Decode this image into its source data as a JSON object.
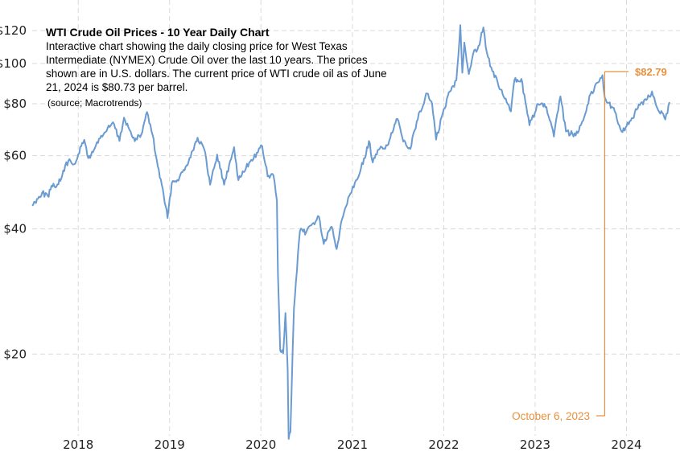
{
  "chart_data": {
    "type": "line",
    "title": "WTI Crude Oil Prices - 10 Year Daily Chart",
    "description": [
      "Interactive chart showing the daily closing price for West Texas",
      "Intermediate (NYMEX) Crude Oil over the last 10 years. The prices",
      "shown are in U.S. dollars. The current price of WTI crude oil as of June",
      "21, 2024 is $80.73 per barrel."
    ],
    "source": "(source; Macrotrends)",
    "y_scale": "log",
    "ylim": [
      13,
      130
    ],
    "y_ticks": [
      {
        "value": 20,
        "label": "$20"
      },
      {
        "value": 40,
        "label": "$40"
      },
      {
        "value": 60,
        "label": "$60"
      },
      {
        "value": 80,
        "label": "$80"
      },
      {
        "value": 100,
        "label": "$100"
      },
      {
        "value": 120,
        "label": "$120"
      }
    ],
    "xlim": [
      "2017-07-01",
      "2024-06-21"
    ],
    "x_ticks": [
      {
        "date": "2018-01-01",
        "label": "2018"
      },
      {
        "date": "2019-01-01",
        "label": "2019"
      },
      {
        "date": "2020-01-01",
        "label": "2020"
      },
      {
        "date": "2021-01-01",
        "label": "2021"
      },
      {
        "date": "2022-01-01",
        "label": "2022"
      },
      {
        "date": "2023-01-01",
        "label": "2023"
      },
      {
        "date": "2024-01-01",
        "label": "2024"
      }
    ],
    "grid": true,
    "line_color": "#6a9bd1",
    "callout_color": "#e8903c",
    "series": [
      {
        "points": [
          [
            "2017-07-01",
            45.5
          ],
          [
            "2017-07-20",
            47.2
          ],
          [
            "2017-08-10",
            48.9
          ],
          [
            "2017-09-01",
            48.0
          ],
          [
            "2017-09-20",
            50.6
          ],
          [
            "2017-10-10",
            51.2
          ],
          [
            "2017-10-25",
            52.8
          ],
          [
            "2017-11-10",
            56.8
          ],
          [
            "2017-12-01",
            58.3
          ],
          [
            "2017-12-15",
            57.2
          ],
          [
            "2018-01-01",
            60.4
          ],
          [
            "2018-01-25",
            65.5
          ],
          [
            "2018-02-10",
            59.2
          ],
          [
            "2018-03-01",
            61.2
          ],
          [
            "2018-03-25",
            65.9
          ],
          [
            "2018-04-20",
            68.4
          ],
          [
            "2018-05-20",
            72.2
          ],
          [
            "2018-06-15",
            65.1
          ],
          [
            "2018-07-03",
            74.1
          ],
          [
            "2018-07-25",
            69.2
          ],
          [
            "2018-08-15",
            65.0
          ],
          [
            "2018-09-10",
            67.5
          ],
          [
            "2018-10-03",
            76.4
          ],
          [
            "2018-10-25",
            67.3
          ],
          [
            "2018-11-15",
            56.5
          ],
          [
            "2018-12-01",
            51.0
          ],
          [
            "2018-12-24",
            42.5
          ],
          [
            "2019-01-10",
            51.6
          ],
          [
            "2019-02-10",
            53.3
          ],
          [
            "2019-03-10",
            56.9
          ],
          [
            "2019-04-23",
            66.3
          ],
          [
            "2019-05-20",
            62.1
          ],
          [
            "2019-06-12",
            51.1
          ],
          [
            "2019-07-10",
            60.4
          ],
          [
            "2019-08-07",
            51.1
          ],
          [
            "2019-09-16",
            62.9
          ],
          [
            "2019-10-03",
            52.4
          ],
          [
            "2019-11-15",
            57.7
          ],
          [
            "2019-12-20",
            61.1
          ],
          [
            "2020-01-06",
            63.3
          ],
          [
            "2020-01-28",
            53.5
          ],
          [
            "2020-02-20",
            53.8
          ],
          [
            "2020-03-05",
            46.8
          ],
          [
            "2020-03-09",
            31.1
          ],
          [
            "2020-03-18",
            20.4
          ],
          [
            "2020-03-30",
            20.1
          ],
          [
            "2020-04-08",
            25.1
          ],
          [
            "2020-04-17",
            18.3
          ],
          [
            "2020-04-21",
            12.5
          ],
          [
            "2020-04-28",
            13.0
          ],
          [
            "2020-05-12",
            25.8
          ],
          [
            "2020-06-05",
            39.5
          ],
          [
            "2020-06-30",
            39.3
          ],
          [
            "2020-07-20",
            40.8
          ],
          [
            "2020-08-20",
            42.8
          ],
          [
            "2020-09-08",
            36.8
          ],
          [
            "2020-10-10",
            40.5
          ],
          [
            "2020-10-30",
            35.8
          ],
          [
            "2020-11-20",
            42.2
          ],
          [
            "2020-12-15",
            47.6
          ],
          [
            "2021-01-15",
            52.4
          ],
          [
            "2021-02-20",
            59.2
          ],
          [
            "2021-03-08",
            65.1
          ],
          [
            "2021-03-23",
            57.8
          ],
          [
            "2021-04-20",
            62.4
          ],
          [
            "2021-05-20",
            63.5
          ],
          [
            "2021-06-30",
            73.5
          ],
          [
            "2021-07-19",
            66.4
          ],
          [
            "2021-08-20",
            62.3
          ],
          [
            "2021-09-15",
            72.6
          ],
          [
            "2021-10-26",
            84.7
          ],
          [
            "2021-11-15",
            80.2
          ],
          [
            "2021-12-01",
            65.6
          ],
          [
            "2021-12-28",
            76.0
          ],
          [
            "2022-01-25",
            85.6
          ],
          [
            "2022-02-20",
            91.1
          ],
          [
            "2022-03-08",
            123.7
          ],
          [
            "2022-03-16",
            95.0
          ],
          [
            "2022-03-24",
            112.3
          ],
          [
            "2022-04-11",
            94.3
          ],
          [
            "2022-04-28",
            105.4
          ],
          [
            "2022-05-20",
            110.3
          ],
          [
            "2022-06-08",
            122.1
          ],
          [
            "2022-06-22",
            106.2
          ],
          [
            "2022-07-14",
            95.8
          ],
          [
            "2022-08-16",
            86.5
          ],
          [
            "2022-09-26",
            76.7
          ],
          [
            "2022-10-10",
            91.1
          ],
          [
            "2022-11-07",
            91.8
          ],
          [
            "2022-12-09",
            71.0
          ],
          [
            "2023-01-13",
            79.9
          ],
          [
            "2023-02-15",
            78.6
          ],
          [
            "2023-03-17",
            66.7
          ],
          [
            "2023-04-12",
            83.3
          ],
          [
            "2023-05-04",
            68.6
          ],
          [
            "2023-06-12",
            67.1
          ],
          [
            "2023-07-20",
            75.6
          ],
          [
            "2023-08-10",
            84.4
          ],
          [
            "2023-09-27",
            93.7
          ],
          [
            "2023-10-06",
            82.79
          ],
          [
            "2023-11-15",
            76.7
          ],
          [
            "2023-12-12",
            68.6
          ],
          [
            "2024-01-10",
            71.4
          ],
          [
            "2024-02-15",
            78.0
          ],
          [
            "2024-03-20",
            81.7
          ],
          [
            "2024-04-12",
            85.7
          ],
          [
            "2024-05-03",
            78.1
          ],
          [
            "2024-06-04",
            73.3
          ],
          [
            "2024-06-21",
            80.73
          ]
        ]
      }
    ],
    "callout": {
      "date": "2023-10-06",
      "value": 82.79,
      "value_label": "$82.79",
      "date_label": "October 6, 2023"
    }
  }
}
